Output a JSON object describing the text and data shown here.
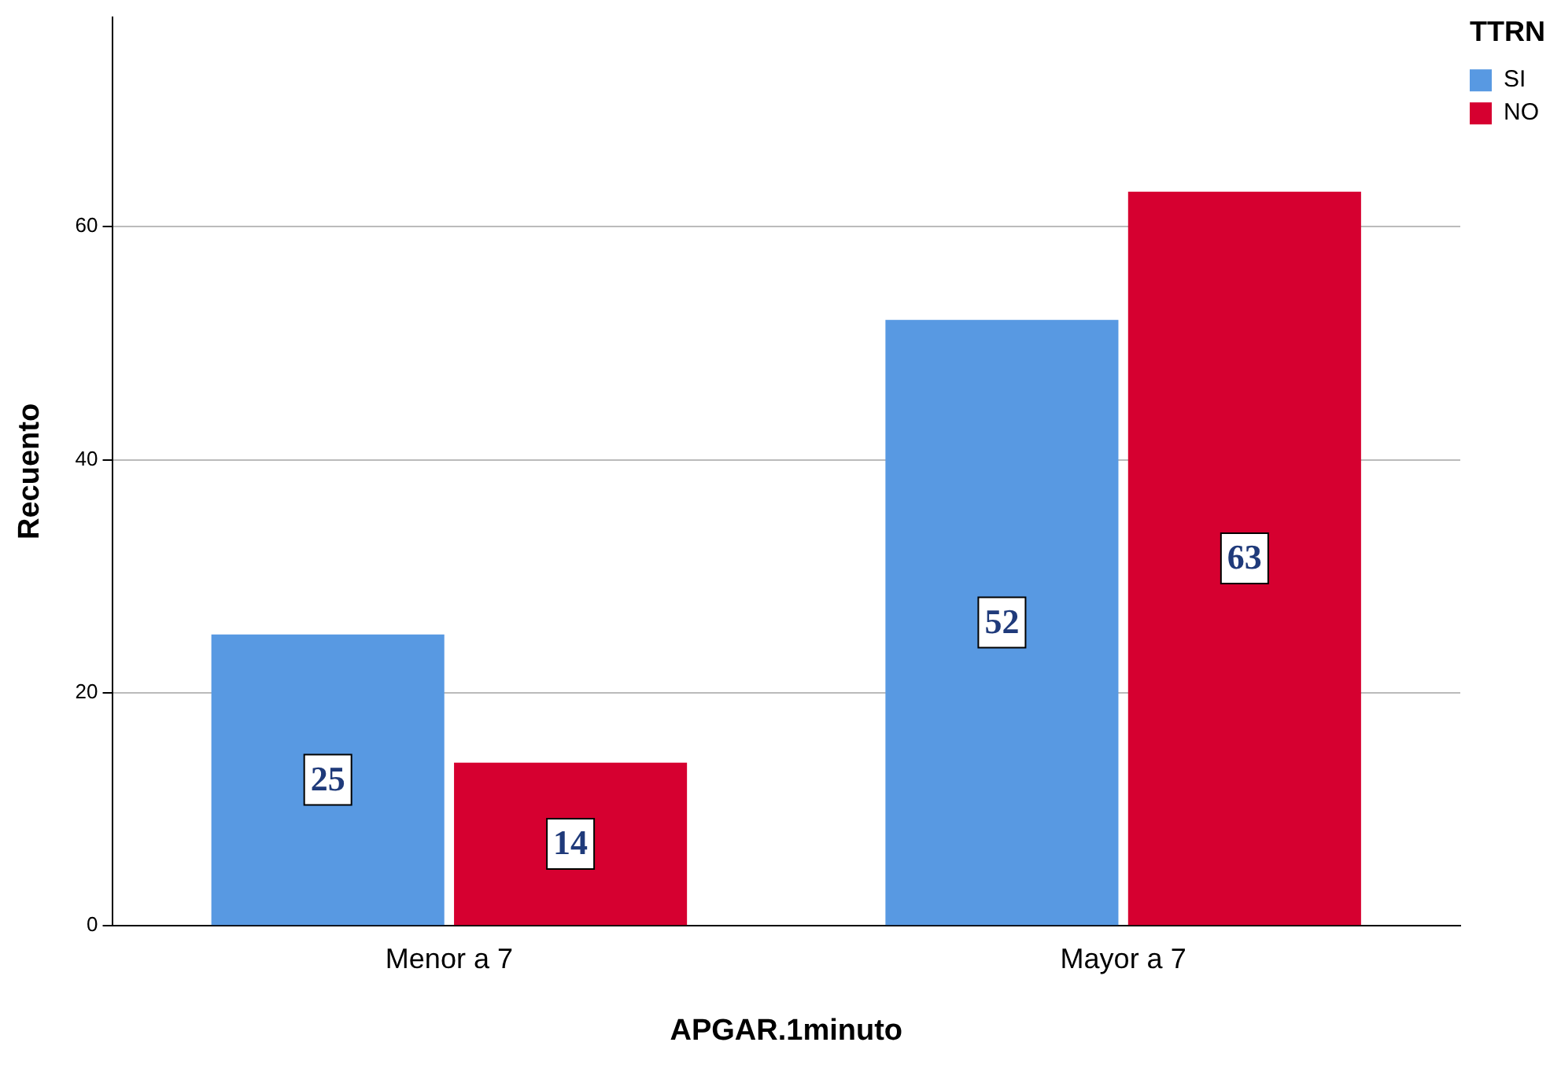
{
  "chart_data": {
    "type": "bar",
    "xlabel": "APGAR.1minuto",
    "ylabel": "Recuento",
    "legend_title": "TTRN",
    "categories": [
      "Menor a 7",
      "Mayor a 7"
    ],
    "series": [
      {
        "name": "SI",
        "color": "#5899e2",
        "values": [
          25,
          52
        ]
      },
      {
        "name": "NO",
        "color": "#d60030",
        "values": [
          14,
          63
        ]
      }
    ],
    "ylim": [
      0,
      78
    ],
    "yticks": [
      0,
      20,
      40,
      60
    ],
    "grid": "y",
    "legend": "top right",
    "data_labels": true
  }
}
